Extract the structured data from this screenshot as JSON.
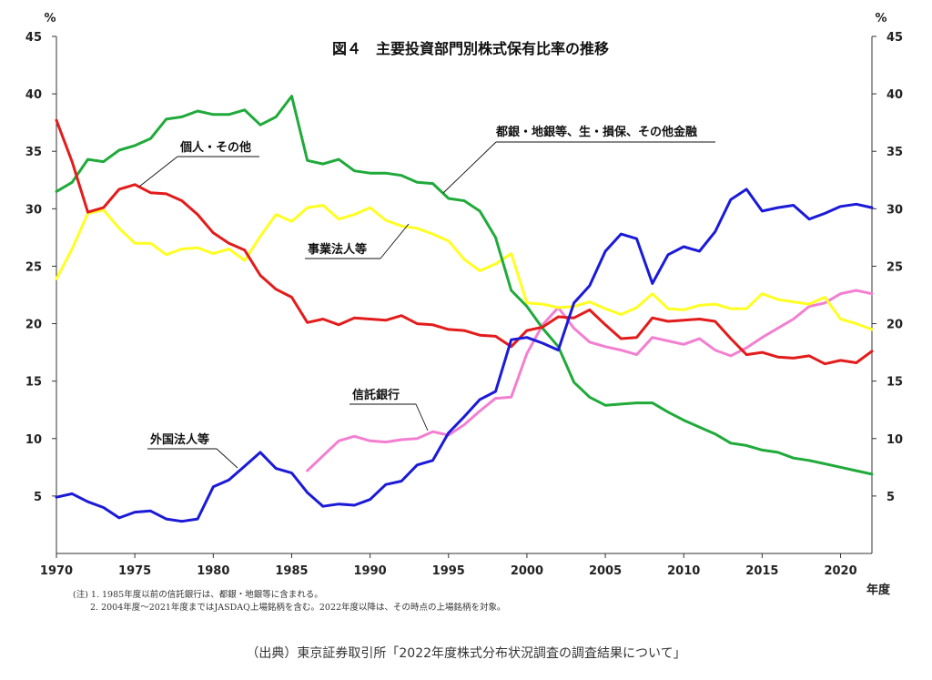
{
  "chart_data": {
    "type": "line",
    "title": "図４　主要投資部門別株式保有比率の推移",
    "ylabel_left": "%",
    "ylabel_right": "%",
    "xlabel": "年度",
    "xlim": [
      1970,
      2022
    ],
    "ylim": [
      0,
      45
    ],
    "xticks": [
      1970,
      1975,
      1980,
      1985,
      1990,
      1995,
      2000,
      2005,
      2010,
      2015,
      2020
    ],
    "yticks": [
      5,
      10,
      15,
      20,
      25,
      30,
      35,
      40,
      45
    ],
    "grid": false,
    "series": [
      {
        "name": "都銀・地銀等、生・損保、その他金融",
        "color": "#1faa3a",
        "x": [
          1970,
          1971,
          1972,
          1973,
          1974,
          1975,
          1976,
          1977,
          1978,
          1979,
          1980,
          1981,
          1982,
          1983,
          1984,
          1985,
          1986,
          1987,
          1988,
          1989,
          1990,
          1991,
          1992,
          1993,
          1994,
          1995,
          1996,
          1997,
          1998,
          1999,
          2000,
          2001,
          2002,
          2003,
          2004,
          2005,
          2006,
          2007,
          2008,
          2009,
          2010,
          2011,
          2012,
          2013,
          2014,
          2015,
          2016,
          2017,
          2018,
          2019,
          2020,
          2021,
          2022
        ],
        "y": [
          31.5,
          32.3,
          34.3,
          34.1,
          35.1,
          35.5,
          36.1,
          37.8,
          38.0,
          38.5,
          38.2,
          38.2,
          38.6,
          37.3,
          38.0,
          39.8,
          34.2,
          33.9,
          34.3,
          33.3,
          33.1,
          33.1,
          32.9,
          32.3,
          32.2,
          30.9,
          30.7,
          29.8,
          27.5,
          22.9,
          21.5,
          19.6,
          18.0,
          14.9,
          13.6,
          12.9,
          13.0,
          13.1,
          13.1,
          12.3,
          11.6,
          11.0,
          10.4,
          9.6,
          9.4,
          9.0,
          8.8,
          8.3,
          8.1,
          7.8,
          7.5,
          7.2,
          6.9
        ]
      },
      {
        "name": "個人・その他",
        "color": "#e31b1b",
        "x": [
          1970,
          1971,
          1972,
          1973,
          1974,
          1975,
          1976,
          1977,
          1978,
          1979,
          1980,
          1981,
          1982,
          1983,
          1984,
          1985,
          1986,
          1987,
          1988,
          1989,
          1990,
          1991,
          1992,
          1993,
          1994,
          1995,
          1996,
          1997,
          1998,
          1999,
          2000,
          2001,
          2002,
          2003,
          2004,
          2005,
          2006,
          2007,
          2008,
          2009,
          2010,
          2011,
          2012,
          2013,
          2014,
          2015,
          2016,
          2017,
          2018,
          2019,
          2020,
          2021,
          2022
        ],
        "y": [
          37.7,
          34.1,
          29.7,
          30.1,
          31.7,
          32.1,
          31.4,
          31.3,
          30.7,
          29.5,
          27.9,
          27.0,
          26.4,
          24.2,
          23.0,
          22.3,
          20.1,
          20.4,
          19.9,
          20.5,
          20.4,
          20.3,
          20.7,
          20.0,
          19.9,
          19.5,
          19.4,
          19.0,
          18.9,
          18.0,
          19.4,
          19.7,
          20.6,
          20.5,
          21.2,
          19.9,
          18.7,
          18.8,
          20.5,
          20.2,
          20.3,
          20.4,
          20.2,
          18.7,
          17.3,
          17.5,
          17.1,
          17.0,
          17.2,
          16.5,
          16.8,
          16.6,
          17.6
        ]
      },
      {
        "name": "事業法人等",
        "color": "#ffff22",
        "x": [
          1970,
          1971,
          1972,
          1973,
          1974,
          1975,
          1976,
          1977,
          1978,
          1979,
          1980,
          1981,
          1982,
          1983,
          1984,
          1985,
          1986,
          1987,
          1988,
          1989,
          1990,
          1991,
          1992,
          1993,
          1994,
          1995,
          1996,
          1997,
          1998,
          1999,
          2000,
          2001,
          2002,
          2003,
          2004,
          2005,
          2006,
          2007,
          2008,
          2009,
          2010,
          2011,
          2012,
          2013,
          2014,
          2015,
          2016,
          2017,
          2018,
          2019,
          2020,
          2021,
          2022
        ],
        "y": [
          23.9,
          26.5,
          29.6,
          29.9,
          28.3,
          27.0,
          27.0,
          26.0,
          26.5,
          26.6,
          26.1,
          26.5,
          25.5,
          27.6,
          29.5,
          28.9,
          30.1,
          30.3,
          29.1,
          29.5,
          30.1,
          29.0,
          28.5,
          28.3,
          27.8,
          27.2,
          25.6,
          24.6,
          25.2,
          26.1,
          21.8,
          21.7,
          21.4,
          21.5,
          21.9,
          21.3,
          20.8,
          21.4,
          22.6,
          21.3,
          21.2,
          21.6,
          21.7,
          21.3,
          21.3,
          22.6,
          22.1,
          21.9,
          21.7,
          22.3,
          20.4,
          20.0,
          19.5
        ]
      },
      {
        "name": "信託銀行",
        "color": "#f27fd0",
        "x": [
          1986,
          1987,
          1988,
          1989,
          1990,
          1991,
          1992,
          1993,
          1994,
          1995,
          1996,
          1997,
          1998,
          1999,
          2000,
          2001,
          2002,
          2003,
          2004,
          2005,
          2006,
          2007,
          2008,
          2009,
          2010,
          2011,
          2012,
          2013,
          2014,
          2015,
          2016,
          2017,
          2018,
          2019,
          2020,
          2021,
          2022
        ],
        "y": [
          7.2,
          8.5,
          9.8,
          10.2,
          9.8,
          9.7,
          9.9,
          10.0,
          10.6,
          10.3,
          11.2,
          12.4,
          13.5,
          13.6,
          17.4,
          19.9,
          21.4,
          19.6,
          18.4,
          18.0,
          17.7,
          17.3,
          18.8,
          18.5,
          18.2,
          18.7,
          17.7,
          17.2,
          17.9,
          18.8,
          19.6,
          20.4,
          21.5,
          21.8,
          22.6,
          22.9,
          22.6
        ]
      },
      {
        "name": "外国法人等",
        "color": "#1a1ad8",
        "x": [
          1970,
          1971,
          1972,
          1973,
          1974,
          1975,
          1976,
          1977,
          1978,
          1979,
          1980,
          1981,
          1982,
          1983,
          1984,
          1985,
          1986,
          1987,
          1988,
          1989,
          1990,
          1991,
          1992,
          1993,
          1994,
          1995,
          1996,
          1997,
          1998,
          1999,
          2000,
          2001,
          2002,
          2003,
          2004,
          2005,
          2006,
          2007,
          2008,
          2009,
          2010,
          2011,
          2012,
          2013,
          2014,
          2015,
          2016,
          2017,
          2018,
          2019,
          2020,
          2021,
          2022
        ],
        "y": [
          4.9,
          5.2,
          4.5,
          4.0,
          3.1,
          3.6,
          3.7,
          3.0,
          2.8,
          3.0,
          5.8,
          6.4,
          7.6,
          8.8,
          7.4,
          7.0,
          5.3,
          4.1,
          4.3,
          4.2,
          4.7,
          6.0,
          6.3,
          7.7,
          8.1,
          10.5,
          11.9,
          13.4,
          14.1,
          18.6,
          18.8,
          18.3,
          17.7,
          21.8,
          23.3,
          26.3,
          27.8,
          27.4,
          23.5,
          26.0,
          26.7,
          26.3,
          28.0,
          30.8,
          31.7,
          29.8,
          30.1,
          30.3,
          29.1,
          29.6,
          30.2,
          30.4,
          30.1
        ]
      }
    ]
  },
  "labels": {
    "finance": "都銀・地銀等、生・損保、その他金融",
    "individual": "個人・その他",
    "business": "事業法人等",
    "trust": "信託銀行",
    "foreign": "外国法人等"
  },
  "notes": {
    "note1": "(注) 1. 1985年度以前の信託銀行は、都銀・地銀等に含まれる。",
    "note2": "2. 2004年度～2021年度まではJASDAQ上場銘柄を含む。2022年度以降は、その時点の上場銘柄を対象。"
  },
  "source": "（出典）東京証券取引所「2022年度株式分布状況調査の調査結果について」"
}
